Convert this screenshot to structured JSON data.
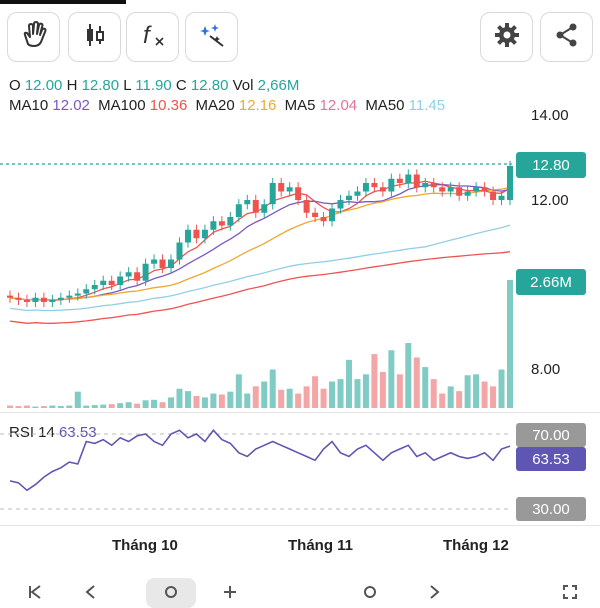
{
  "toolbar": {
    "buttons": [
      {
        "icon": "hand-icon"
      },
      {
        "icon": "candlestick-icon"
      },
      {
        "icon": "function-icon",
        "label": "f"
      },
      {
        "icon": "magic-icon"
      }
    ],
    "settings_icon": "gear-icon",
    "share_icon": "share-icon"
  },
  "ohlc": {
    "o_label": "O",
    "o": "12.00",
    "h_label": "H",
    "h": "12.80",
    "l_label": "L",
    "l": "11.90",
    "c_label": "C",
    "c": "12.80",
    "vol_label": "Vol",
    "vol": "2,66M"
  },
  "ma": [
    {
      "label": "MA10",
      "value": "12.02",
      "color": "#7e57c2"
    },
    {
      "label": "MA100",
      "value": "10.36",
      "color": "#ef5350"
    },
    {
      "label": "MA20",
      "value": "12.16",
      "color": "#f0a830"
    },
    {
      "label": "MA5",
      "value": "12.04",
      "color": "#e57399"
    },
    {
      "label": "MA50",
      "value": "11.45",
      "color": "#90d0e6"
    }
  ],
  "price_axis": {
    "labels": [
      "14.00",
      "12.00",
      "8.00"
    ]
  },
  "tags": {
    "last_price": "12.80",
    "volume": "2.66M"
  },
  "rsi": {
    "label": "RSI 14",
    "value": "63.53",
    "upper": "70.00",
    "lower": "30.00"
  },
  "months": [
    "Tháng 10",
    "Tháng 11",
    "Tháng 12"
  ],
  "colors": {
    "up": "#26a69a",
    "down": "#ef5350",
    "vol_up": "#80cbc4",
    "vol_down": "#f4a6a6",
    "rsi": "#5e56b2"
  },
  "chart_data": {
    "type": "candlestick",
    "close": [
      9.7,
      9.65,
      9.6,
      9.7,
      9.6,
      9.65,
      9.7,
      9.75,
      9.8,
      9.9,
      10.0,
      10.1,
      10.0,
      10.2,
      10.3,
      10.1,
      10.5,
      10.6,
      10.4,
      10.6,
      11.0,
      11.3,
      11.1,
      11.3,
      11.5,
      11.4,
      11.6,
      11.9,
      12.0,
      11.7,
      11.9,
      12.4,
      12.2,
      12.3,
      12.0,
      11.7,
      11.6,
      11.5,
      11.8,
      12.0,
      12.1,
      12.2,
      12.4,
      12.3,
      12.2,
      12.5,
      12.4,
      12.6,
      12.3,
      12.4,
      12.3,
      12.2,
      12.3,
      12.1,
      12.2,
      12.3,
      12.2,
      12.0,
      12.1,
      12.8
    ],
    "open": [
      9.75,
      9.7,
      9.65,
      9.6,
      9.7,
      9.6,
      9.65,
      9.7,
      9.75,
      9.8,
      9.9,
      10.0,
      10.1,
      10.0,
      10.2,
      10.3,
      10.1,
      10.5,
      10.6,
      10.4,
      10.6,
      11.0,
      11.3,
      11.1,
      11.3,
      11.5,
      11.4,
      11.6,
      11.9,
      12.0,
      11.7,
      11.9,
      12.4,
      12.2,
      12.3,
      12.0,
      11.7,
      11.6,
      11.5,
      11.8,
      12.0,
      12.1,
      12.2,
      12.4,
      12.3,
      12.2,
      12.5,
      12.4,
      12.6,
      12.3,
      12.4,
      12.3,
      12.2,
      12.3,
      12.1,
      12.2,
      12.3,
      12.2,
      12.0,
      12.0
    ],
    "volume": [
      0.05,
      0.04,
      0.05,
      0.03,
      0.04,
      0.05,
      0.04,
      0.05,
      0.34,
      0.05,
      0.06,
      0.07,
      0.08,
      0.1,
      0.12,
      0.09,
      0.16,
      0.17,
      0.12,
      0.22,
      0.4,
      0.35,
      0.25,
      0.22,
      0.3,
      0.28,
      0.34,
      0.7,
      0.3,
      0.45,
      0.55,
      0.8,
      0.38,
      0.4,
      0.3,
      0.45,
      0.66,
      0.4,
      0.55,
      0.6,
      1.0,
      0.6,
      0.7,
      1.12,
      0.75,
      1.2,
      0.7,
      1.35,
      1.05,
      0.85,
      0.6,
      0.3,
      0.45,
      0.35,
      0.68,
      0.7,
      0.55,
      0.45,
      0.8,
      2.66
    ],
    "rsi": [
      45,
      44,
      40,
      43,
      47,
      50,
      52,
      55,
      54,
      66,
      65,
      67,
      64,
      68,
      66,
      69,
      70,
      66,
      64,
      70,
      72,
      68,
      70,
      66,
      72,
      67,
      65,
      60,
      58,
      62,
      64,
      66,
      64,
      62,
      60,
      58,
      56,
      62,
      66,
      60,
      58,
      62,
      64,
      60,
      56,
      60,
      62,
      64,
      58,
      60,
      56,
      58,
      60,
      58,
      57,
      58,
      60,
      56,
      62,
      63.53
    ],
    "ylim": [
      8,
      14.3
    ],
    "rsi_levels": [
      30,
      70
    ],
    "x_labels": [
      "Tháng 10",
      "Tháng 11",
      "Tháng 12"
    ]
  }
}
